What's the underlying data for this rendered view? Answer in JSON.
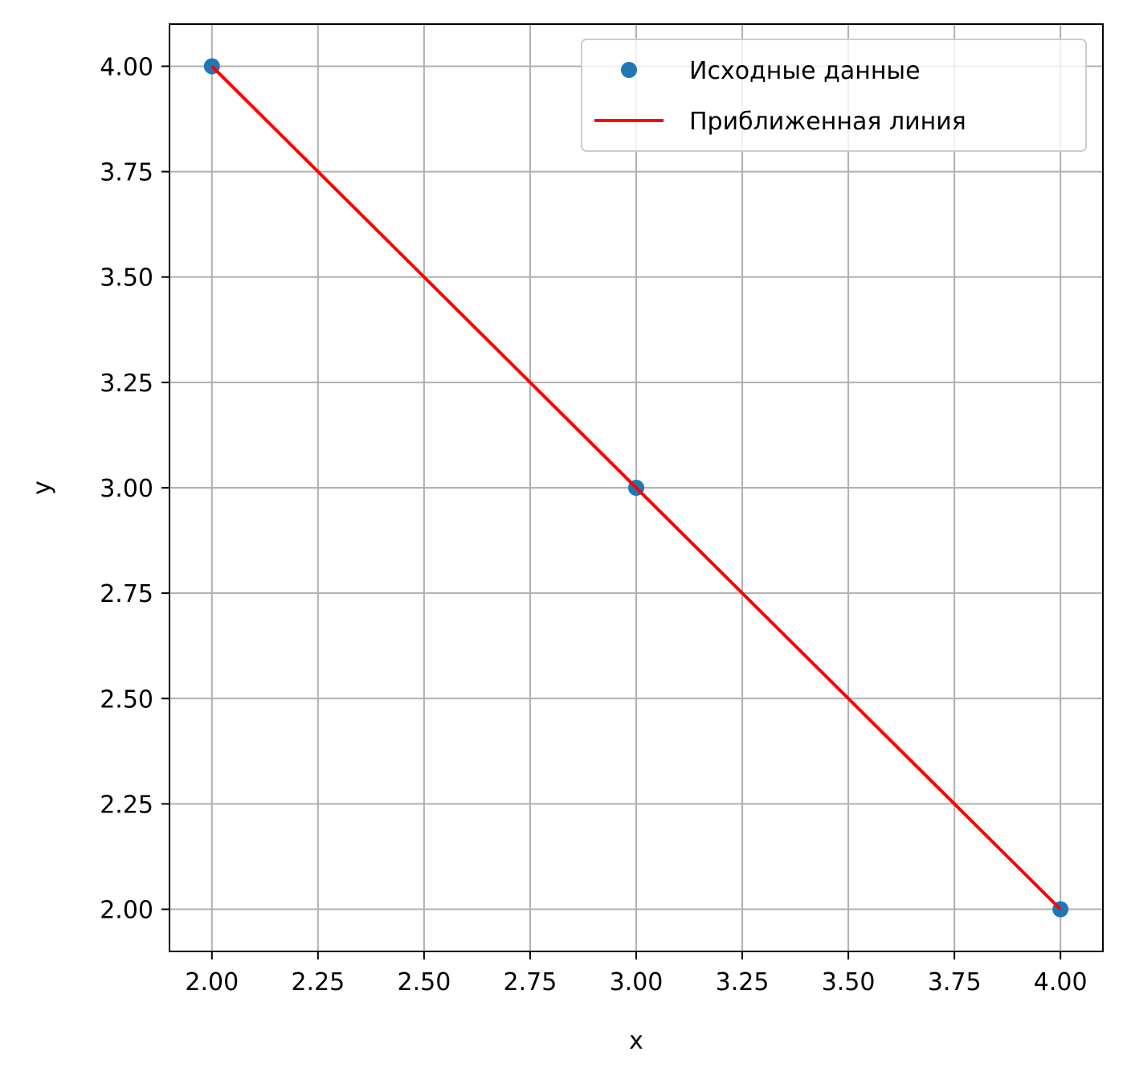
{
  "chart_data": {
    "type": "line",
    "title": "",
    "xlabel": "x",
    "ylabel": "y",
    "xlim": [
      1.9,
      4.1
    ],
    "ylim": [
      1.9,
      4.1
    ],
    "xticks": [
      2.0,
      2.25,
      2.5,
      2.75,
      3.0,
      3.25,
      3.5,
      3.75,
      4.0
    ],
    "yticks": [
      2.0,
      2.25,
      2.5,
      2.75,
      3.0,
      3.25,
      3.5,
      3.75,
      4.0
    ],
    "xtick_labels": [
      "2.00",
      "2.25",
      "2.50",
      "2.75",
      "3.00",
      "3.25",
      "3.50",
      "3.75",
      "4.00"
    ],
    "ytick_labels": [
      "2.00",
      "2.25",
      "2.50",
      "2.75",
      "3.00",
      "3.25",
      "3.50",
      "3.75",
      "4.00"
    ],
    "grid": true,
    "legend_position": "top-right",
    "series": [
      {
        "name": "Исходные данные",
        "kind": "scatter",
        "color": "#1f77b4",
        "points": [
          [
            2.0,
            4.0
          ],
          [
            3.0,
            3.0
          ],
          [
            4.0,
            2.0
          ]
        ]
      },
      {
        "name": "Приближенная линия",
        "kind": "line",
        "color": "#ff0000",
        "points": [
          [
            2.0,
            4.0
          ],
          [
            4.0,
            2.0
          ]
        ]
      }
    ]
  }
}
